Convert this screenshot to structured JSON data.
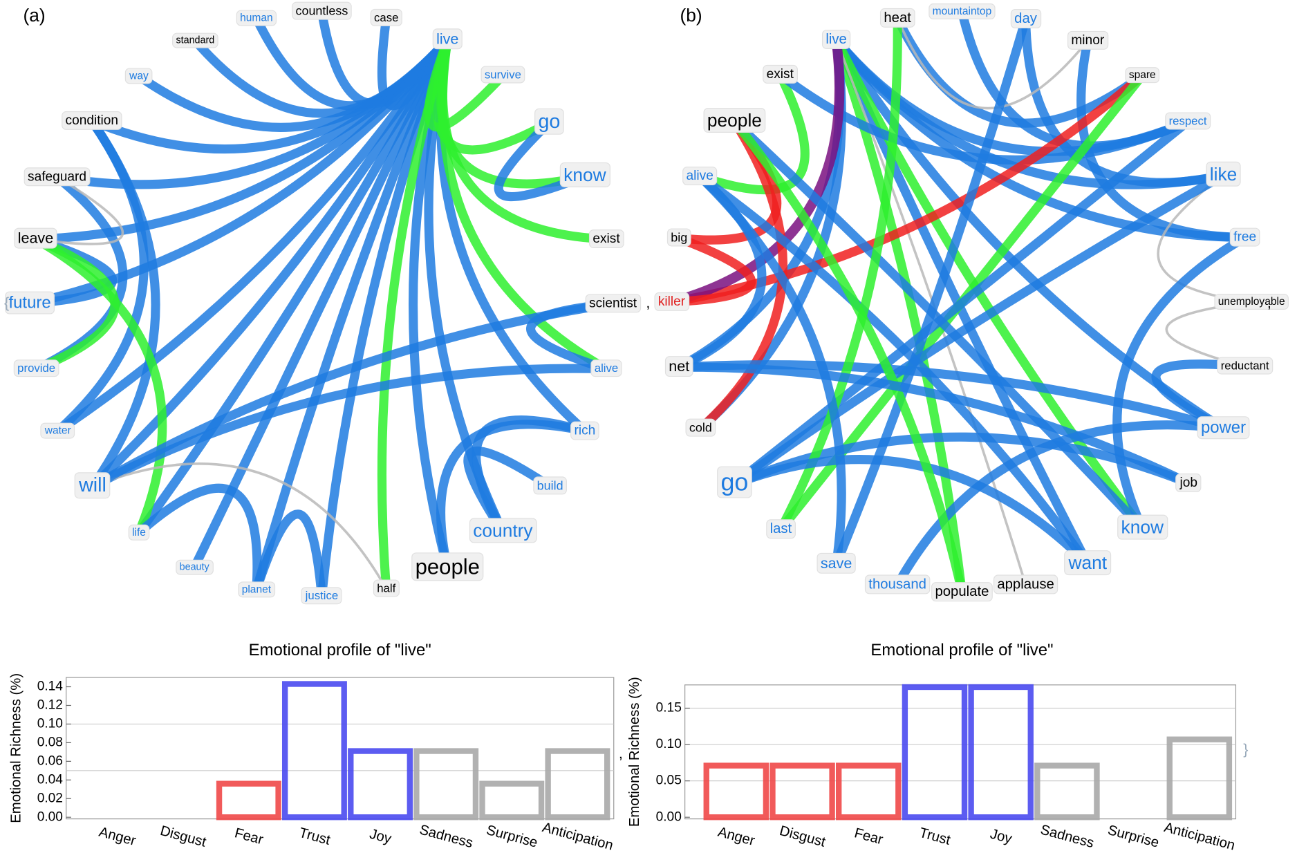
{
  "panels": [
    {
      "label": "(a)",
      "nodes": [
        {
          "text": "standard",
          "color": "#000000"
        },
        {
          "text": "human",
          "color": "#1e7be0"
        },
        {
          "text": "countless",
          "color": "#000000"
        },
        {
          "text": "case",
          "color": "#000000"
        },
        {
          "text": "live",
          "color": "#1e7be0"
        },
        {
          "text": "way",
          "color": "#1e7be0"
        },
        {
          "text": "survive",
          "color": "#1e7be0"
        },
        {
          "text": "condition",
          "color": "#000000"
        },
        {
          "text": "go",
          "color": "#1e7be0"
        },
        {
          "text": "safeguard",
          "color": "#000000"
        },
        {
          "text": "know",
          "color": "#1e7be0"
        },
        {
          "text": "leave",
          "color": "#000000"
        },
        {
          "text": "exist",
          "color": "#000000"
        },
        {
          "text": "future",
          "color": "#1e7be0"
        },
        {
          "text": "scientist",
          "color": "#000000"
        },
        {
          "text": "provide",
          "color": "#1e7be0"
        },
        {
          "text": "alive",
          "color": "#1e7be0"
        },
        {
          "text": "water",
          "color": "#1e7be0"
        },
        {
          "text": "rich",
          "color": "#1e7be0"
        },
        {
          "text": "will",
          "color": "#1e7be0"
        },
        {
          "text": "build",
          "color": "#1e7be0"
        },
        {
          "text": "life",
          "color": "#1e7be0"
        },
        {
          "text": "country",
          "color": "#1e7be0"
        },
        {
          "text": "beauty",
          "color": "#1e7be0"
        },
        {
          "text": "people",
          "color": "#000000"
        },
        {
          "text": "planet",
          "color": "#1e7be0"
        },
        {
          "text": "half",
          "color": "#000000"
        },
        {
          "text": "justice",
          "color": "#1e7be0"
        }
      ]
    },
    {
      "label": "(b)",
      "nodes": [
        {
          "text": "heat",
          "color": "#000000"
        },
        {
          "text": "mountaintop",
          "color": "#1e7be0"
        },
        {
          "text": "day",
          "color": "#1e7be0"
        },
        {
          "text": "live",
          "color": "#1e7be0"
        },
        {
          "text": "minor",
          "color": "#000000"
        },
        {
          "text": "exist",
          "color": "#000000"
        },
        {
          "text": "spare",
          "color": "#000000"
        },
        {
          "text": "people",
          "color": "#000000"
        },
        {
          "text": "respect",
          "color": "#1e7be0"
        },
        {
          "text": "alive",
          "color": "#1e7be0"
        },
        {
          "text": "like",
          "color": "#1e7be0"
        },
        {
          "text": "big",
          "color": "#000000"
        },
        {
          "text": "free",
          "color": "#1e7be0"
        },
        {
          "text": "killer",
          "color": "#e02020"
        },
        {
          "text": "unemployable",
          "color": "#000000"
        },
        {
          "text": "net",
          "color": "#000000"
        },
        {
          "text": "reductant",
          "color": "#000000"
        },
        {
          "text": "cold",
          "color": "#000000"
        },
        {
          "text": "power",
          "color": "#1e7be0"
        },
        {
          "text": "go",
          "color": "#1e7be0"
        },
        {
          "text": "job",
          "color": "#000000"
        },
        {
          "text": "last",
          "color": "#1e7be0"
        },
        {
          "text": "know",
          "color": "#1e7be0"
        },
        {
          "text": "save",
          "color": "#1e7be0"
        },
        {
          "text": "want",
          "color": "#1e7be0"
        },
        {
          "text": "thousand",
          "color": "#1e7be0"
        },
        {
          "text": "populate",
          "color": "#000000"
        },
        {
          "text": "applause",
          "color": "#000000"
        }
      ]
    }
  ],
  "separators": [
    "{",
    ",",
    ",",
    ",",
    "}"
  ],
  "chart_data": [
    {
      "type": "bar",
      "title": "Emotional profile of \"live\"",
      "y_label": "Emotional Richness (%)",
      "categories": [
        "Anger",
        "Disgust",
        "Fear",
        "Trust",
        "Joy",
        "Sadness",
        "Surprise",
        "Anticipation"
      ],
      "values": [
        0,
        0,
        0.036,
        0.143,
        0.071,
        0.071,
        0.036,
        0.071
      ],
      "colors": [
        "#f04848",
        "#f04848",
        "#f04848",
        "#4a4af0",
        "#4a4af0",
        "#a8a8a8",
        "#a8a8a8",
        "#a8a8a8"
      ],
      "ylim": [
        0,
        0.15
      ],
      "yticks": [
        {
          "value": 0,
          "label": "0.00"
        },
        {
          "value": 0.02,
          "label": "0.02"
        },
        {
          "value": 0.04,
          "label": "0.04"
        },
        {
          "value": 0.06,
          "label": "0.06"
        },
        {
          "value": 0.08,
          "label": "0.08"
        },
        {
          "value": 0.1,
          "label": "0.10"
        },
        {
          "value": 0.12,
          "label": "0.12"
        },
        {
          "value": 0.14,
          "label": "0.14"
        }
      ],
      "grid_lines": [
        0.05,
        0.1
      ]
    },
    {
      "type": "bar",
      "title": "Emotional profile of \"live\"",
      "y_label": "Emotional Richness (%)",
      "categories": [
        "Anger",
        "Disgust",
        "Fear",
        "Trust",
        "Joy",
        "Sadness",
        "Surprise",
        "Anticipation"
      ],
      "values": [
        0.071,
        0.071,
        0.071,
        0.179,
        0.179,
        0.071,
        0,
        0.107
      ],
      "colors": [
        "#f04848",
        "#f04848",
        "#f04848",
        "#4a4af0",
        "#4a4af0",
        "#a8a8a8",
        "#a8a8a8",
        "#a8a8a8"
      ],
      "ylim": [
        0,
        0.182
      ],
      "yticks": [
        {
          "value": 0,
          "label": "0.00"
        },
        {
          "value": 0.05,
          "label": "0.05"
        },
        {
          "value": 0.1,
          "label": "0.10"
        },
        {
          "value": 0.15,
          "label": "0.15"
        }
      ],
      "grid_lines": [
        0.05,
        0.1,
        0.15
      ]
    }
  ]
}
